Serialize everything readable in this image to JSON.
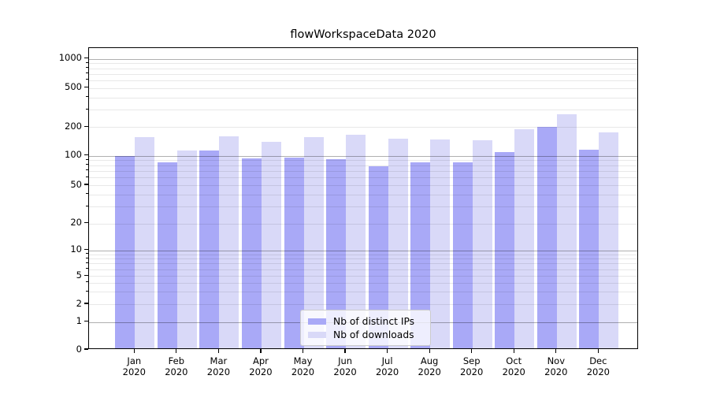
{
  "title": "flowWorkspaceData 2020",
  "chart_data": {
    "type": "bar",
    "title": "flowWorkspaceData 2020",
    "categories": [
      "Jan",
      "Feb",
      "Mar",
      "Apr",
      "May",
      "Jun",
      "Jul",
      "Aug",
      "Sep",
      "Oct",
      "Nov",
      "Dec"
    ],
    "category_year": "2020",
    "series": [
      {
        "name": "Nb of distinct IPs",
        "color": "#a9a9f7",
        "values": [
          96,
          83,
          108,
          90,
          92,
          88,
          75,
          82,
          83,
          104,
          194,
          112
        ]
      },
      {
        "name": "Nb of downloads",
        "color": "#d9d9f8",
        "values": [
          150,
          110,
          155,
          135,
          150,
          160,
          146,
          142,
          141,
          182,
          262,
          168
        ]
      }
    ],
    "yscale": "symlog",
    "ytick_labels": [
      "1000",
      "500",
      "200",
      "100",
      "50",
      "20",
      "10",
      "5",
      "2",
      "1",
      "0"
    ],
    "ytick_values": [
      1000,
      500,
      200,
      100,
      50,
      20,
      10,
      5,
      2,
      1,
      0
    ],
    "minor_gridline_values": [
      3,
      4,
      6,
      7,
      8,
      9,
      30,
      40,
      60,
      70,
      80,
      90,
      300,
      400,
      600,
      700,
      800,
      900
    ],
    "decade_gridline_values": [
      1,
      10,
      100,
      1000
    ],
    "ylim": [
      0,
      1300
    ],
    "grid": true,
    "legend_position": "lower center"
  },
  "legend": {
    "items": [
      {
        "label": "Nb of distinct IPs",
        "color": "#a9a9f7"
      },
      {
        "label": "Nb of downloads",
        "color": "#d9d9f8"
      }
    ]
  }
}
